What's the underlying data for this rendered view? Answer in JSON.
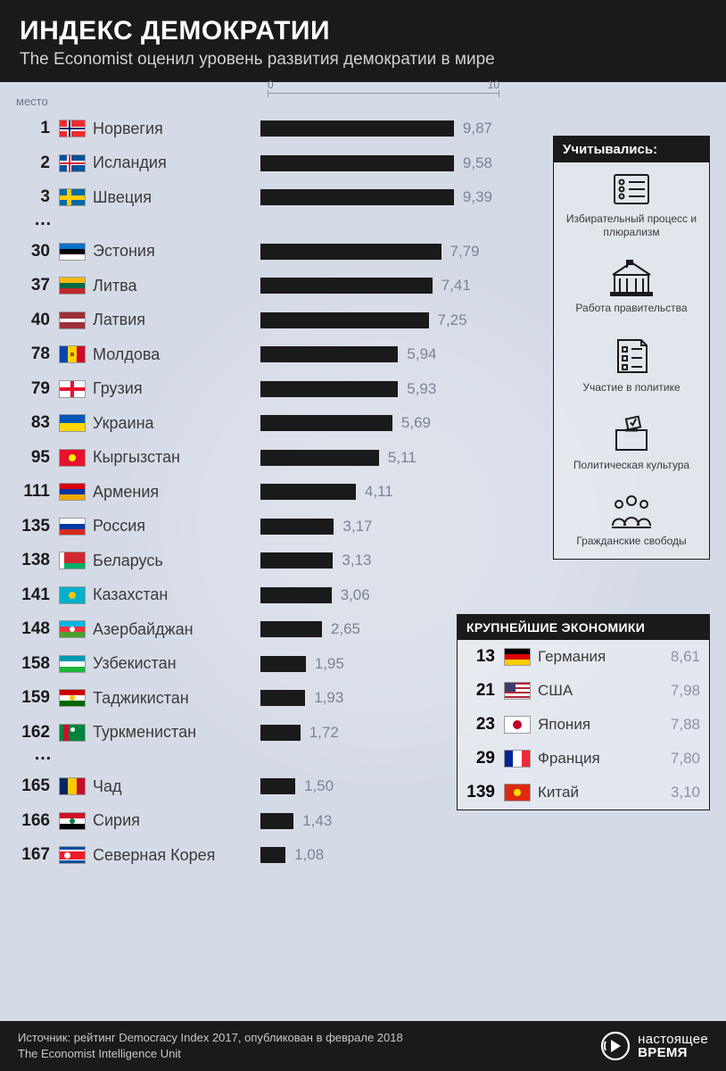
{
  "header": {
    "title": "ИНДЕКС ДЕМОКРАТИИ",
    "subtitle": "The Economist оценил уровень развития демократии в мире"
  },
  "chart": {
    "column_label": "место",
    "axis_min_label": "0",
    "axis_max_label": "10",
    "scale_max": 10,
    "bar_color": "#1a1a1a",
    "value_color": "#7a8494",
    "background_color": "#d5dbe6",
    "rows": [
      {
        "rank": "1",
        "country": "Норвегия",
        "value": 9.87,
        "value_str": "9,87",
        "flag": "norway"
      },
      {
        "rank": "2",
        "country": "Исландия",
        "value": 9.58,
        "value_str": "9,58",
        "flag": "iceland"
      },
      {
        "rank": "3",
        "country": "Швеция",
        "value": 9.39,
        "value_str": "9,39",
        "flag": "sweden"
      },
      {
        "ellipsis": true
      },
      {
        "rank": "30",
        "country": "Эстония",
        "value": 7.79,
        "value_str": "7,79",
        "flag": "estonia"
      },
      {
        "rank": "37",
        "country": "Литва",
        "value": 7.41,
        "value_str": "7,41",
        "flag": "lithuania"
      },
      {
        "rank": "40",
        "country": "Латвия",
        "value": 7.25,
        "value_str": "7,25",
        "flag": "latvia"
      },
      {
        "rank": "78",
        "country": "Молдова",
        "value": 5.94,
        "value_str": "5,94",
        "flag": "moldova"
      },
      {
        "rank": "79",
        "country": "Грузия",
        "value": 5.93,
        "value_str": "5,93",
        "flag": "georgia"
      },
      {
        "rank": "83",
        "country": "Украина",
        "value": 5.69,
        "value_str": "5,69",
        "flag": "ukraine"
      },
      {
        "rank": "95",
        "country": "Кыргызстан",
        "value": 5.11,
        "value_str": "5,11",
        "flag": "kyrgyzstan"
      },
      {
        "rank": "111",
        "country": "Армения",
        "value": 4.11,
        "value_str": "4,11",
        "flag": "armenia"
      },
      {
        "rank": "135",
        "country": "Россия",
        "value": 3.17,
        "value_str": "3,17",
        "flag": "russia"
      },
      {
        "rank": "138",
        "country": "Беларусь",
        "value": 3.13,
        "value_str": "3,13",
        "flag": "belarus"
      },
      {
        "rank": "141",
        "country": "Казахстан",
        "value": 3.06,
        "value_str": "3,06",
        "flag": "kazakhstan"
      },
      {
        "rank": "148",
        "country": "Азербайджан",
        "value": 2.65,
        "value_str": "2,65",
        "flag": "azerbaijan"
      },
      {
        "rank": "158",
        "country": "Узбекистан",
        "value": 1.95,
        "value_str": "1,95",
        "flag": "uzbekistan"
      },
      {
        "rank": "159",
        "country": "Таджикистан",
        "value": 1.93,
        "value_str": "1,93",
        "flag": "tajikistan"
      },
      {
        "rank": "162",
        "country": "Туркменистан",
        "value": 1.72,
        "value_str": "1,72",
        "flag": "turkmenistan"
      },
      {
        "ellipsis": true
      },
      {
        "rank": "165",
        "country": "Чад",
        "value": 1.5,
        "value_str": "1,50",
        "flag": "chad"
      },
      {
        "rank": "166",
        "country": "Сирия",
        "value": 1.43,
        "value_str": "1,43",
        "flag": "syria"
      },
      {
        "rank": "167",
        "country": "Северная Корея",
        "value": 1.08,
        "value_str": "1,08",
        "flag": "nkorea"
      }
    ]
  },
  "sidebar": {
    "title": "Учитывались:",
    "criteria": [
      {
        "icon": "ballot-icon",
        "label": "Избирательный процесс и плюрализм"
      },
      {
        "icon": "government-icon",
        "label": "Работа правительства"
      },
      {
        "icon": "checklist-icon",
        "label": "Участие в политике"
      },
      {
        "icon": "vote-box-icon",
        "label": "Политическая культура"
      },
      {
        "icon": "people-icon",
        "label": "Гражданские свободы"
      }
    ]
  },
  "economies": {
    "title": "КРУПНЕЙШИЕ ЭКОНОМИКИ",
    "rows": [
      {
        "rank": "13",
        "country": "Германия",
        "value_str": "8,61",
        "flag": "germany"
      },
      {
        "rank": "21",
        "country": "США",
        "value_str": "7,98",
        "flag": "usa"
      },
      {
        "rank": "23",
        "country": "Япония",
        "value_str": "7,88",
        "flag": "japan"
      },
      {
        "rank": "29",
        "country": "Франция",
        "value_str": "7,80",
        "flag": "france"
      },
      {
        "rank": "139",
        "country": "Китай",
        "value_str": "3,10",
        "flag": "china"
      }
    ]
  },
  "footer": {
    "line1": "Источник: рейтинг Democracy Index 2017, опубликован в феврале 2018",
    "line2": "The Economist Intelligence Unit",
    "logo_line1": "настоящее",
    "logo_line2": "ВРЕМЯ"
  },
  "flag_colors": {
    "norway": {
      "type": "nordic",
      "bg": "#ef2b2d",
      "cross": "#fff",
      "cross2": "#002868"
    },
    "iceland": {
      "type": "nordic",
      "bg": "#02529c",
      "cross": "#fff",
      "cross2": "#dc1e35"
    },
    "sweden": {
      "type": "nordic",
      "bg": "#006aa7",
      "cross": "#fecc00"
    },
    "estonia": {
      "type": "h3",
      "c": [
        "#0072ce",
        "#000",
        "#fff"
      ]
    },
    "lithuania": {
      "type": "h3",
      "c": [
        "#fdb913",
        "#006a44",
        "#c1272d"
      ]
    },
    "latvia": {
      "type": "h3w",
      "c": [
        "#9e3039",
        "#fff",
        "#9e3039"
      ],
      "w": [
        8,
        4,
        8
      ]
    },
    "moldova": {
      "type": "v3",
      "c": [
        "#0046ae",
        "#ffd200",
        "#cc092f"
      ],
      "emblem": "#8b5a2b"
    },
    "georgia": {
      "type": "georgia"
    },
    "ukraine": {
      "type": "h2",
      "c": [
        "#0057b7",
        "#ffd700"
      ]
    },
    "kyrgyzstan": {
      "type": "solid",
      "bg": "#e8112d",
      "emblem": "#ffef00"
    },
    "armenia": {
      "type": "h3",
      "c": [
        "#d90012",
        "#0033a0",
        "#f2a800"
      ]
    },
    "russia": {
      "type": "h3",
      "c": [
        "#fff",
        "#0039a6",
        "#d52b1e"
      ]
    },
    "belarus": {
      "type": "belarus"
    },
    "kazakhstan": {
      "type": "solid",
      "bg": "#00afca",
      "emblem": "#fec50c"
    },
    "azerbaijan": {
      "type": "h3",
      "c": [
        "#00b5e2",
        "#ef3340",
        "#509e2f"
      ],
      "emblem": "#fff"
    },
    "uzbekistan": {
      "type": "h3",
      "c": [
        "#0099b5",
        "#fff",
        "#1eb53a"
      ]
    },
    "tajikistan": {
      "type": "h3",
      "c": [
        "#cc0000",
        "#fff",
        "#006600"
      ],
      "emblem": "#f8c300"
    },
    "turkmenistan": {
      "type": "turkmen"
    },
    "chad": {
      "type": "v3",
      "c": [
        "#002664",
        "#fecb00",
        "#c60c30"
      ]
    },
    "syria": {
      "type": "h3",
      "c": [
        "#ce1126",
        "#fff",
        "#000"
      ],
      "emblem": "#007a3d"
    },
    "nkorea": {
      "type": "nkorea"
    },
    "germany": {
      "type": "h3",
      "c": [
        "#000",
        "#dd0000",
        "#ffce00"
      ]
    },
    "usa": {
      "type": "usa"
    },
    "japan": {
      "type": "solid",
      "bg": "#fff",
      "emblem": "#bc002d",
      "circle": true
    },
    "france": {
      "type": "v3",
      "c": [
        "#002395",
        "#fff",
        "#ed2939"
      ]
    },
    "china": {
      "type": "solid",
      "bg": "#de2910",
      "emblem": "#ffde00"
    }
  }
}
